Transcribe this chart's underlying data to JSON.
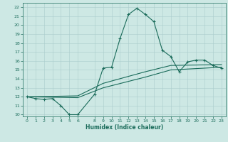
{
  "title": "",
  "xlabel": "Humidex (Indice chaleur)",
  "bg_color": "#cde8e4",
  "grid_color": "#aacccc",
  "line_color": "#1a6b5a",
  "xlim": [
    -0.5,
    23.5
  ],
  "ylim": [
    9.8,
    22.5
  ],
  "xticks": [
    0,
    1,
    2,
    3,
    4,
    5,
    6,
    8,
    9,
    10,
    11,
    12,
    13,
    14,
    15,
    16,
    17,
    18,
    19,
    20,
    21,
    22,
    23
  ],
  "yticks": [
    10,
    11,
    12,
    13,
    14,
    15,
    16,
    17,
    18,
    19,
    20,
    21,
    22
  ],
  "line1_x": [
    0,
    1,
    2,
    3,
    4,
    5,
    6,
    8,
    9,
    10,
    11,
    12,
    13,
    14,
    15,
    16,
    17,
    18,
    19,
    20,
    21,
    22,
    23
  ],
  "line1_y": [
    12.0,
    11.8,
    11.7,
    11.8,
    11.0,
    10.0,
    10.0,
    12.3,
    15.2,
    15.3,
    18.5,
    21.2,
    21.9,
    21.2,
    20.4,
    17.2,
    16.5,
    14.8,
    15.9,
    16.1,
    16.1,
    15.5,
    15.2
  ],
  "line2_x": [
    0,
    6,
    9,
    14,
    17,
    23
  ],
  "line2_y": [
    12.0,
    11.9,
    13.0,
    14.2,
    15.0,
    15.3
  ],
  "line3_x": [
    0,
    6,
    9,
    14,
    17,
    23
  ],
  "line3_y": [
    12.0,
    12.1,
    13.5,
    14.8,
    15.5,
    15.6
  ]
}
